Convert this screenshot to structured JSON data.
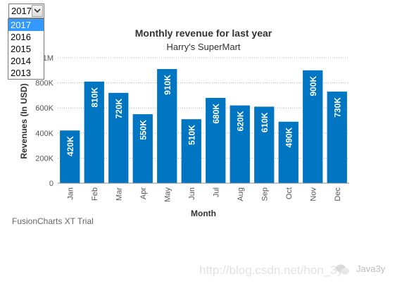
{
  "year_selector": {
    "selected": "2017",
    "options": [
      "2017",
      "2016",
      "2015",
      "2014",
      "2013"
    ]
  },
  "trial_notice": "FusionCharts XT Trial",
  "watermark": {
    "url_text": "http://blog.csdn.net/hon_3y",
    "brand": "Java3y"
  },
  "colors": {
    "bar": "#0075c2",
    "grid": "#b0b0b0",
    "axis_text": "#555555",
    "title": "#333333",
    "select_highlight": "#3399ff"
  },
  "chart_data": {
    "type": "bar",
    "title": "Monthly revenue for last year",
    "subtitle": "Harry's SuperMart",
    "xlabel": "Month",
    "ylabel": "Revenues (In USD)",
    "ylim": [
      0,
      1000000
    ],
    "yticks": [
      {
        "value": 0,
        "label": "0"
      },
      {
        "value": 200000,
        "label": "200K"
      },
      {
        "value": 400000,
        "label": "400K"
      },
      {
        "value": 600000,
        "label": "600K"
      },
      {
        "value": 800000,
        "label": "800K"
      },
      {
        "value": 1000000,
        "label": "1M"
      }
    ],
    "grid": true,
    "categories": [
      "Jan",
      "Feb",
      "Mar",
      "Apr",
      "May",
      "Jun",
      "Jul",
      "Aug",
      "Sep",
      "Oct",
      "Nov",
      "Dec"
    ],
    "values": [
      420000,
      810000,
      720000,
      550000,
      910000,
      510000,
      680000,
      620000,
      610000,
      490000,
      900000,
      730000
    ],
    "data_labels": [
      "420K",
      "810K",
      "720K",
      "550K",
      "910K",
      "510K",
      "680K",
      "620K",
      "610K",
      "490K",
      "900K",
      "730K"
    ]
  }
}
